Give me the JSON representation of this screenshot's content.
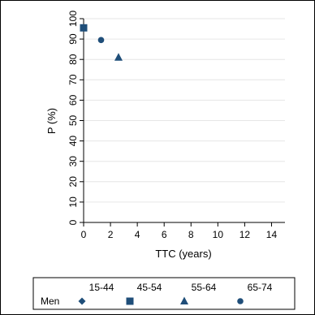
{
  "chart_data": {
    "type": "scatter",
    "title": "",
    "xlabel": "TTC (years)",
    "ylabel": "P (%)",
    "xlim": [
      0,
      15
    ],
    "ylim": [
      0,
      100
    ],
    "xticks": [
      0,
      2,
      4,
      6,
      8,
      10,
      12,
      14
    ],
    "yticks": [
      0,
      10,
      20,
      30,
      40,
      50,
      60,
      70,
      80,
      90,
      100
    ],
    "grid": true,
    "legend": {
      "placement": "bottom",
      "group_label": "Men"
    },
    "marker_color": "#1f4e79",
    "series": [
      {
        "name": "15-44",
        "marker": "diamond",
        "x": [
          0.0
        ],
        "y": [
          95.5
        ]
      },
      {
        "name": "45-54",
        "marker": "square",
        "x": [
          0.0
        ],
        "y": [
          95.5
        ]
      },
      {
        "name": "55-64",
        "marker": "triangle",
        "x": [
          2.6
        ],
        "y": [
          81.0
        ]
      },
      {
        "name": "65-74",
        "marker": "circle",
        "x": [
          1.3
        ],
        "y": [
          89.5
        ]
      }
    ]
  }
}
